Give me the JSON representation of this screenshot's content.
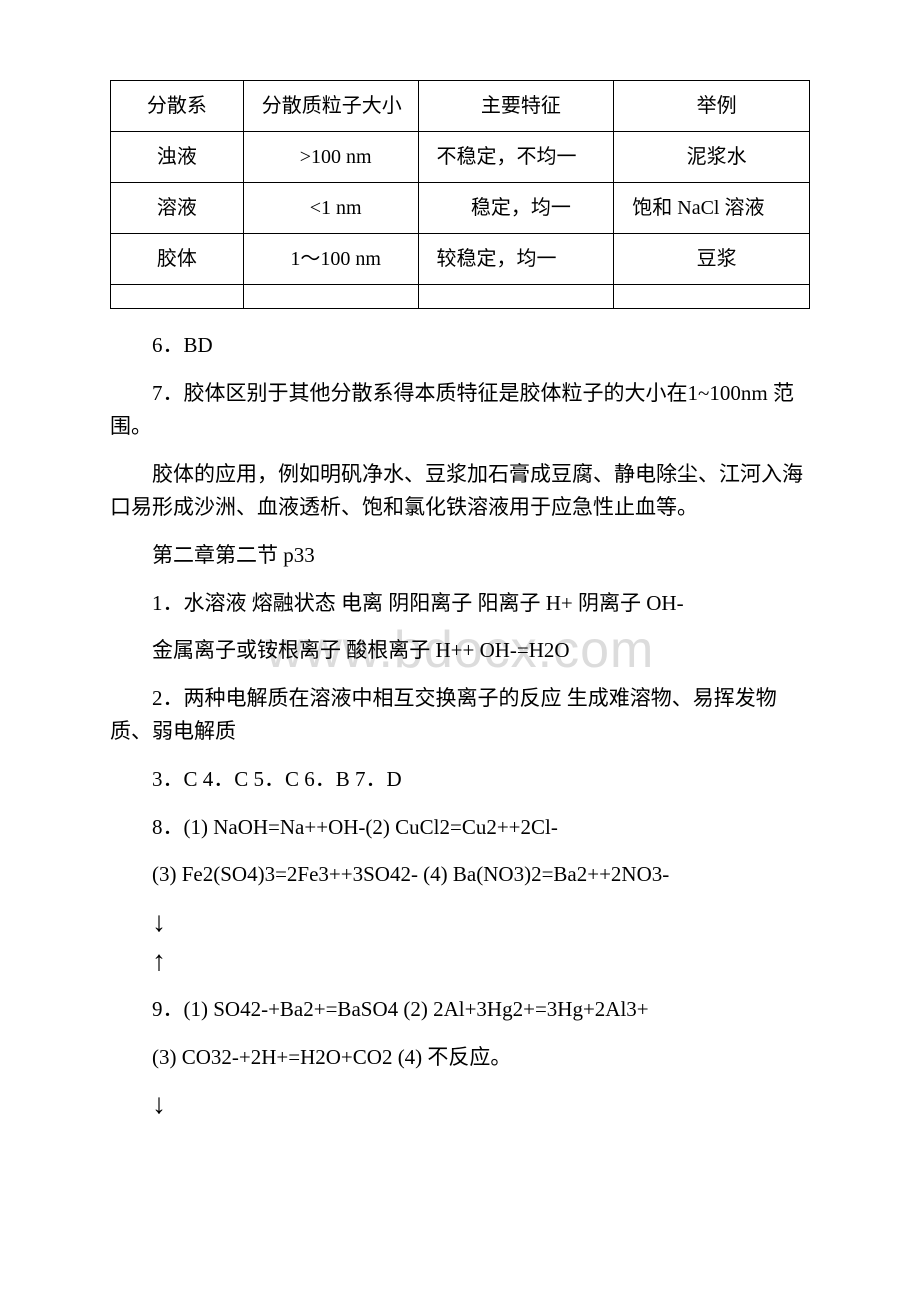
{
  "watermark": "www.bdocx.com",
  "table": {
    "header": {
      "c1": "分散系",
      "c2": "分散质粒子大小",
      "c3": "主要特征",
      "c4": "举例"
    },
    "rows": [
      {
        "c1": "浊液",
        "c2": ">100 nm",
        "c3": "不稳定，不均一",
        "c4": "泥浆水"
      },
      {
        "c1": "溶液",
        "c2": "<1 nm",
        "c3": "稳定，均一",
        "c4": "饱和 NaCl 溶液"
      },
      {
        "c1": "胶体",
        "c2": "1～100 nm",
        "c3": "较稳定，均一",
        "c4": "豆浆"
      }
    ]
  },
  "paragraphs": {
    "p6": "6．BD",
    "p7a": "7．胶体区别于其他分散系得本质特征是胶体粒子的大小在1~100nm 范围。",
    "p7b": "胶体的应用，例如明矾净水、豆浆加石膏成豆腐、静电除尘、江河入海口易形成沙洲、血液透析、饱和氯化铁溶液用于应急性止血等。",
    "section": "第二章第二节 p33",
    "p1": "1．水溶液 熔融状态 电离 阴阳离子 阳离子 H+ 阴离子 OH-",
    "p1b": "金属离子或铵根离子 酸根离子 H++ OH-=H2O",
    "p2": "2．两种电解质在溶液中相互交换离子的反应 生成难溶物、易挥发物质、弱电解质",
    "p3_7": "3．C 4．C 5．C 6．B 7．D",
    "p8a": "8．(1) NaOH=Na++OH-(2) CuCl2=Cu2++2Cl-",
    "p8b": "(3) Fe2(SO4)3=2Fe3++3SO42- (4) Ba(NO3)2=Ba2++2NO3-",
    "arrow_down1": "↓",
    "arrow_up1": "↑",
    "p9a": "9．(1) SO42-+Ba2+=BaSO4 (2) 2Al+3Hg2+=3Hg+2Al3+",
    "p9b": "(3) CO32-+2H+=H2O+CO2 (4) 不反应。",
    "arrow_down2": "↓"
  }
}
